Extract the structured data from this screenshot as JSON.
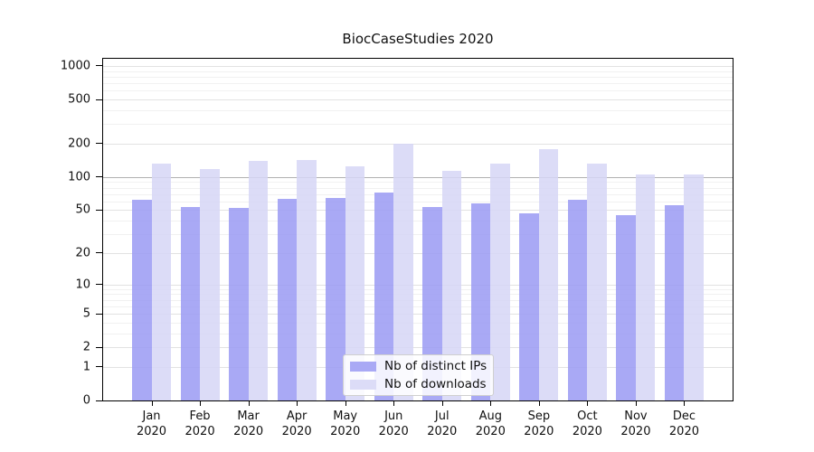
{
  "title": "BiocCaseStudies 2020",
  "chart_data": {
    "type": "bar",
    "title": "BiocCaseStudies 2020",
    "categories": [
      "Jan",
      "Feb",
      "Mar",
      "Apr",
      "May",
      "Jun",
      "Jul",
      "Aug",
      "Sep",
      "Oct",
      "Nov",
      "Dec"
    ],
    "year_label": "2020",
    "series": [
      {
        "name": "Nb of distinct IPs",
        "color_solid": "#a9a9f5",
        "color_rgba": "rgba(154,154,243,0.85)",
        "values": [
          62,
          53,
          52,
          63,
          65,
          72,
          53,
          58,
          47,
          62,
          45,
          55
        ]
      },
      {
        "name": "Nb of downloads",
        "color_solid": "#dcdcf7",
        "color_rgba": "rgba(214,214,246,0.85)",
        "values": [
          133,
          118,
          140,
          143,
          125,
          198,
          114,
          132,
          180,
          131,
          105,
          105
        ]
      }
    ],
    "y_axis": {
      "scale": "log1p",
      "ticks": [
        0,
        1,
        2,
        5,
        10,
        20,
        50,
        100,
        200,
        500,
        1000
      ],
      "minor_gridlines": [
        3,
        4,
        6,
        7,
        8,
        9,
        30,
        40,
        60,
        70,
        80,
        90,
        300,
        400,
        600,
        700,
        800,
        900
      ],
      "emphasized_gridline": 100,
      "ylim": [
        0,
        1160
      ]
    },
    "x_axis": {
      "tick_label_line2": "2020"
    },
    "legend": {
      "position": "bottom-center",
      "entries": [
        "Nb of distinct IPs",
        "Nb of downloads"
      ]
    },
    "colors": {
      "background": "#ffffff",
      "axis": "#000000",
      "gridline_minor": "#f1f1f1",
      "gridline_major": "#e2e2e2",
      "gridline_emphasized": "#b0b0b0"
    }
  }
}
